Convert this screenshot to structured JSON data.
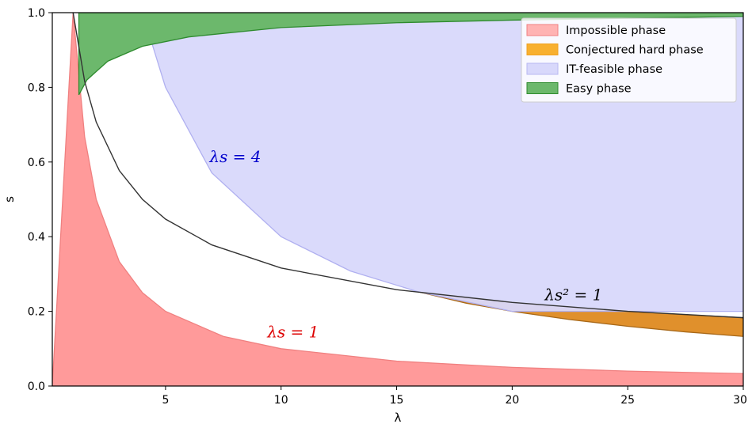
{
  "chart_data": {
    "type": "area",
    "xlabel": "λ",
    "ylabel": "s",
    "xlim": [
      0.1,
      30
    ],
    "ylim": [
      0,
      1
    ],
    "x_ticks": [
      5,
      10,
      15,
      20,
      25,
      30
    ],
    "y_ticks": [
      0.0,
      0.2,
      0.4,
      0.6,
      0.8,
      1.0
    ],
    "x_tick_labels": [
      "5",
      "10",
      "15",
      "20",
      "25",
      "30"
    ],
    "y_tick_labels": [
      "0.0",
      "0.2",
      "0.4",
      "0.6",
      "0.8",
      "1.0"
    ],
    "grid": false,
    "legend_position": "top-right",
    "series": [
      {
        "name": "Impossible phase",
        "color": "#ff9a9a",
        "edge_color": "#f08080",
        "lower": [
          [
            0.1,
            0.0
          ],
          [
            30,
            0.0
          ]
        ],
        "upper": [
          [
            1,
            1.0
          ],
          [
            1.5,
            0.667
          ],
          [
            2,
            0.5
          ],
          [
            3,
            0.333
          ],
          [
            4,
            0.25
          ],
          [
            5,
            0.2
          ],
          [
            7.5,
            0.133
          ],
          [
            10,
            0.1
          ],
          [
            15,
            0.0667
          ],
          [
            20,
            0.05
          ],
          [
            25,
            0.04
          ],
          [
            30,
            0.0333
          ]
        ]
      },
      {
        "name": "Conjectured hard phase",
        "color": "#e0902c",
        "edge_color": "#a86818",
        "lower": [
          [
            15.9,
            0.253
          ],
          [
            18,
            0.222
          ],
          [
            20,
            0.2
          ],
          [
            22.5,
            0.178
          ],
          [
            25,
            0.16
          ],
          [
            27.5,
            0.145
          ],
          [
            30,
            0.133
          ]
        ],
        "upper": [
          [
            15.9,
            0.253
          ],
          [
            18,
            0.236
          ],
          [
            20,
            0.224
          ],
          [
            22.5,
            0.211
          ],
          [
            25,
            0.2
          ],
          [
            27.5,
            0.191
          ],
          [
            30,
            0.183
          ]
        ]
      },
      {
        "name": "IT-feasible phase",
        "color": "#d8d8fb",
        "edge_color": "#b0b0f0",
        "lower": [
          [
            4,
            1.0
          ],
          [
            5,
            0.8
          ],
          [
            7,
            0.571
          ],
          [
            10,
            0.4
          ],
          [
            13,
            0.308
          ],
          [
            15.9,
            0.253
          ],
          [
            20,
            0.2
          ],
          [
            25,
            0.2
          ],
          [
            30,
            0.2
          ]
        ],
        "upper": [
          [
            4,
            1.0
          ],
          [
            30,
            1.0
          ]
        ]
      },
      {
        "name": "Easy phase",
        "color": "#6cb86c",
        "edge_color": "#2e8b2e",
        "lower": [
          [
            1.25,
            0.78
          ],
          [
            1.6,
            0.82
          ],
          [
            2.5,
            0.87
          ],
          [
            4,
            0.91
          ],
          [
            6,
            0.935
          ],
          [
            10,
            0.96
          ],
          [
            15,
            0.973
          ],
          [
            20,
            0.98
          ],
          [
            25,
            0.985
          ],
          [
            30,
            0.99
          ]
        ],
        "upper": [
          [
            1.25,
            1.0
          ],
          [
            30,
            1.0
          ]
        ]
      }
    ],
    "curves": [
      {
        "name": "λs² = 1",
        "color": "#333333",
        "points": [
          [
            1.0,
            1.0
          ],
          [
            1.5,
            0.816
          ],
          [
            2,
            0.707
          ],
          [
            3,
            0.577
          ],
          [
            4,
            0.5
          ],
          [
            5,
            0.447
          ],
          [
            7,
            0.378
          ],
          [
            10,
            0.316
          ],
          [
            15,
            0.258
          ],
          [
            20,
            0.224
          ],
          [
            25,
            0.2
          ],
          [
            30,
            0.183
          ]
        ]
      }
    ],
    "annotations": [
      {
        "text": "λs = 4",
        "x": 6.9,
        "y": 0.6,
        "color": "#0000cc"
      },
      {
        "text": "λs = 1",
        "x": 9.4,
        "y": 0.13,
        "color": "#dd0000"
      },
      {
        "text": "λs² = 1",
        "x": 21.4,
        "y": 0.23,
        "color": "#000000"
      }
    ]
  }
}
